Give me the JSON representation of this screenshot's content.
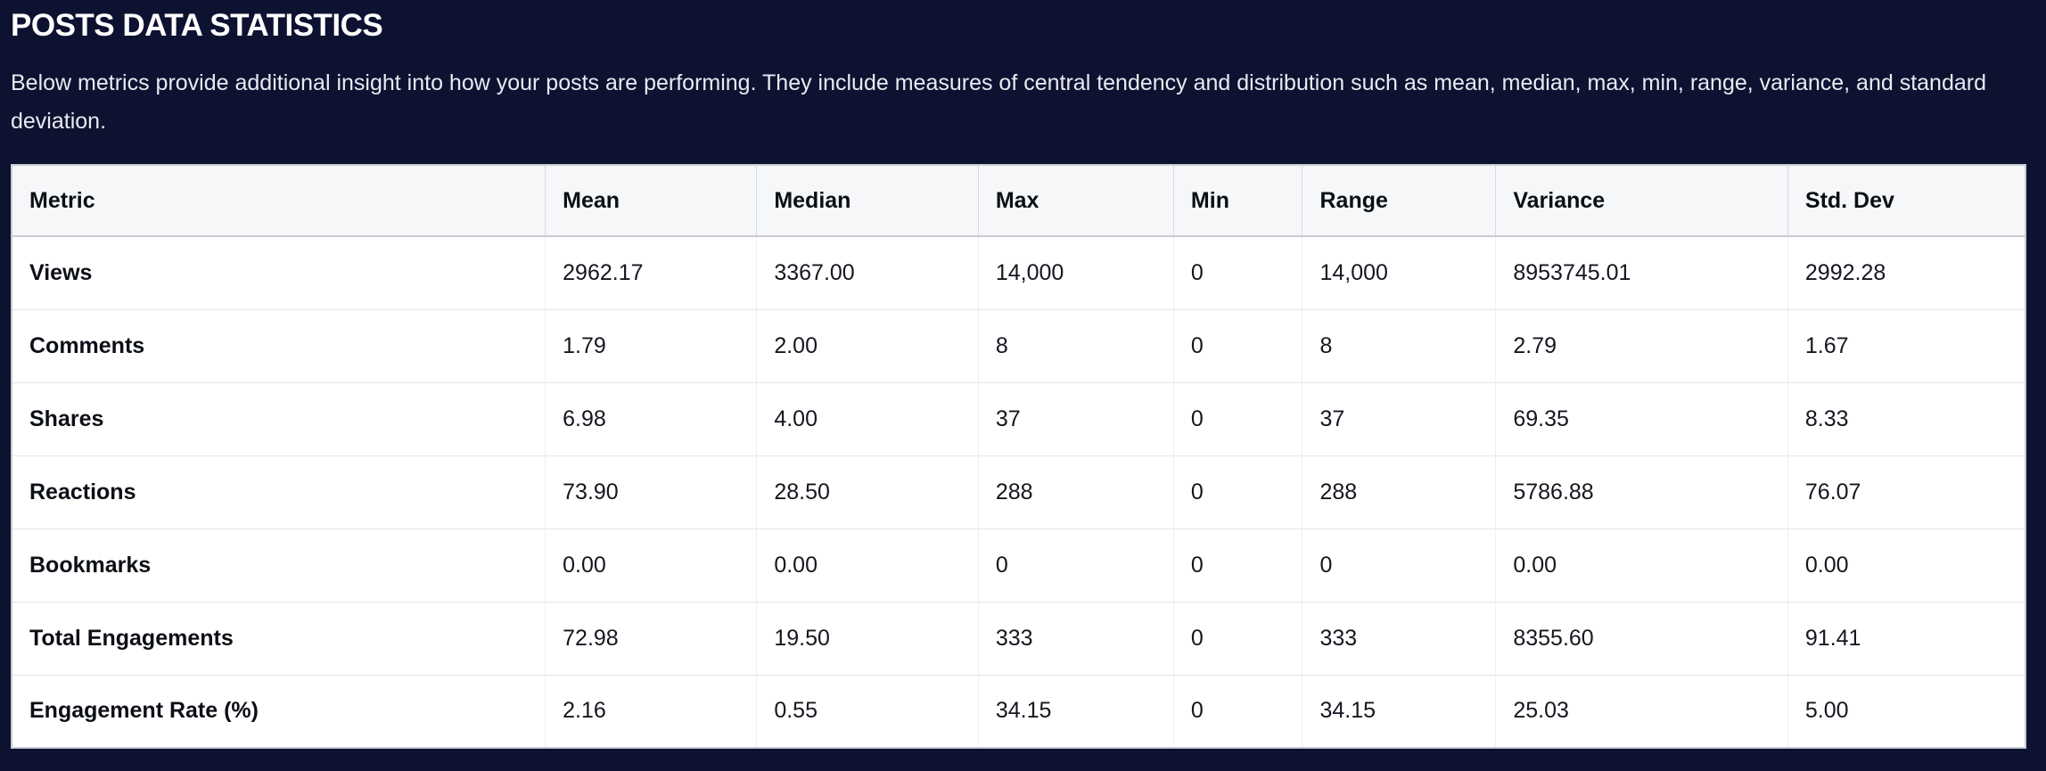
{
  "page": {
    "title": "POSTS DATA STATISTICS",
    "description": "Below metrics provide additional insight into how your posts are performing. They include measures of central tendency and distribution such as mean, median, max, min, range, variance, and standard deviation."
  },
  "table": {
    "columns": [
      "Metric",
      "Mean",
      "Median",
      "Max",
      "Min",
      "Range",
      "Variance",
      "Std. Dev"
    ],
    "rows": [
      [
        "Views",
        "2962.17",
        "3367.00",
        "14,000",
        "0",
        "14,000",
        "8953745.01",
        "2992.28"
      ],
      [
        "Comments",
        "1.79",
        "2.00",
        "8",
        "0",
        "8",
        "2.79",
        "1.67"
      ],
      [
        "Shares",
        "6.98",
        "4.00",
        "37",
        "0",
        "37",
        "69.35",
        "8.33"
      ],
      [
        "Reactions",
        "73.90",
        "28.50",
        "288",
        "0",
        "288",
        "5786.88",
        "76.07"
      ],
      [
        "Bookmarks",
        "0.00",
        "0.00",
        "0",
        "0",
        "0",
        "0.00",
        "0.00"
      ],
      [
        "Total Engagements",
        "72.98",
        "19.50",
        "333",
        "0",
        "333",
        "8355.60",
        "91.41"
      ],
      [
        "Engagement Rate (%)",
        "2.16",
        "0.55",
        "34.15",
        "0",
        "34.15",
        "25.03",
        "5.00"
      ]
    ]
  },
  "colors": {
    "bg": "#0d1231",
    "header_bg": "#f6f7f9",
    "row_bg": "#ffffff",
    "border_strong": "#c9ccd3",
    "border_light": "#e2e5ea",
    "border_lighter": "#edeff3",
    "text_light": "#e9eaf0",
    "title_color": "#ffffff",
    "text_dark": "#14171f"
  }
}
